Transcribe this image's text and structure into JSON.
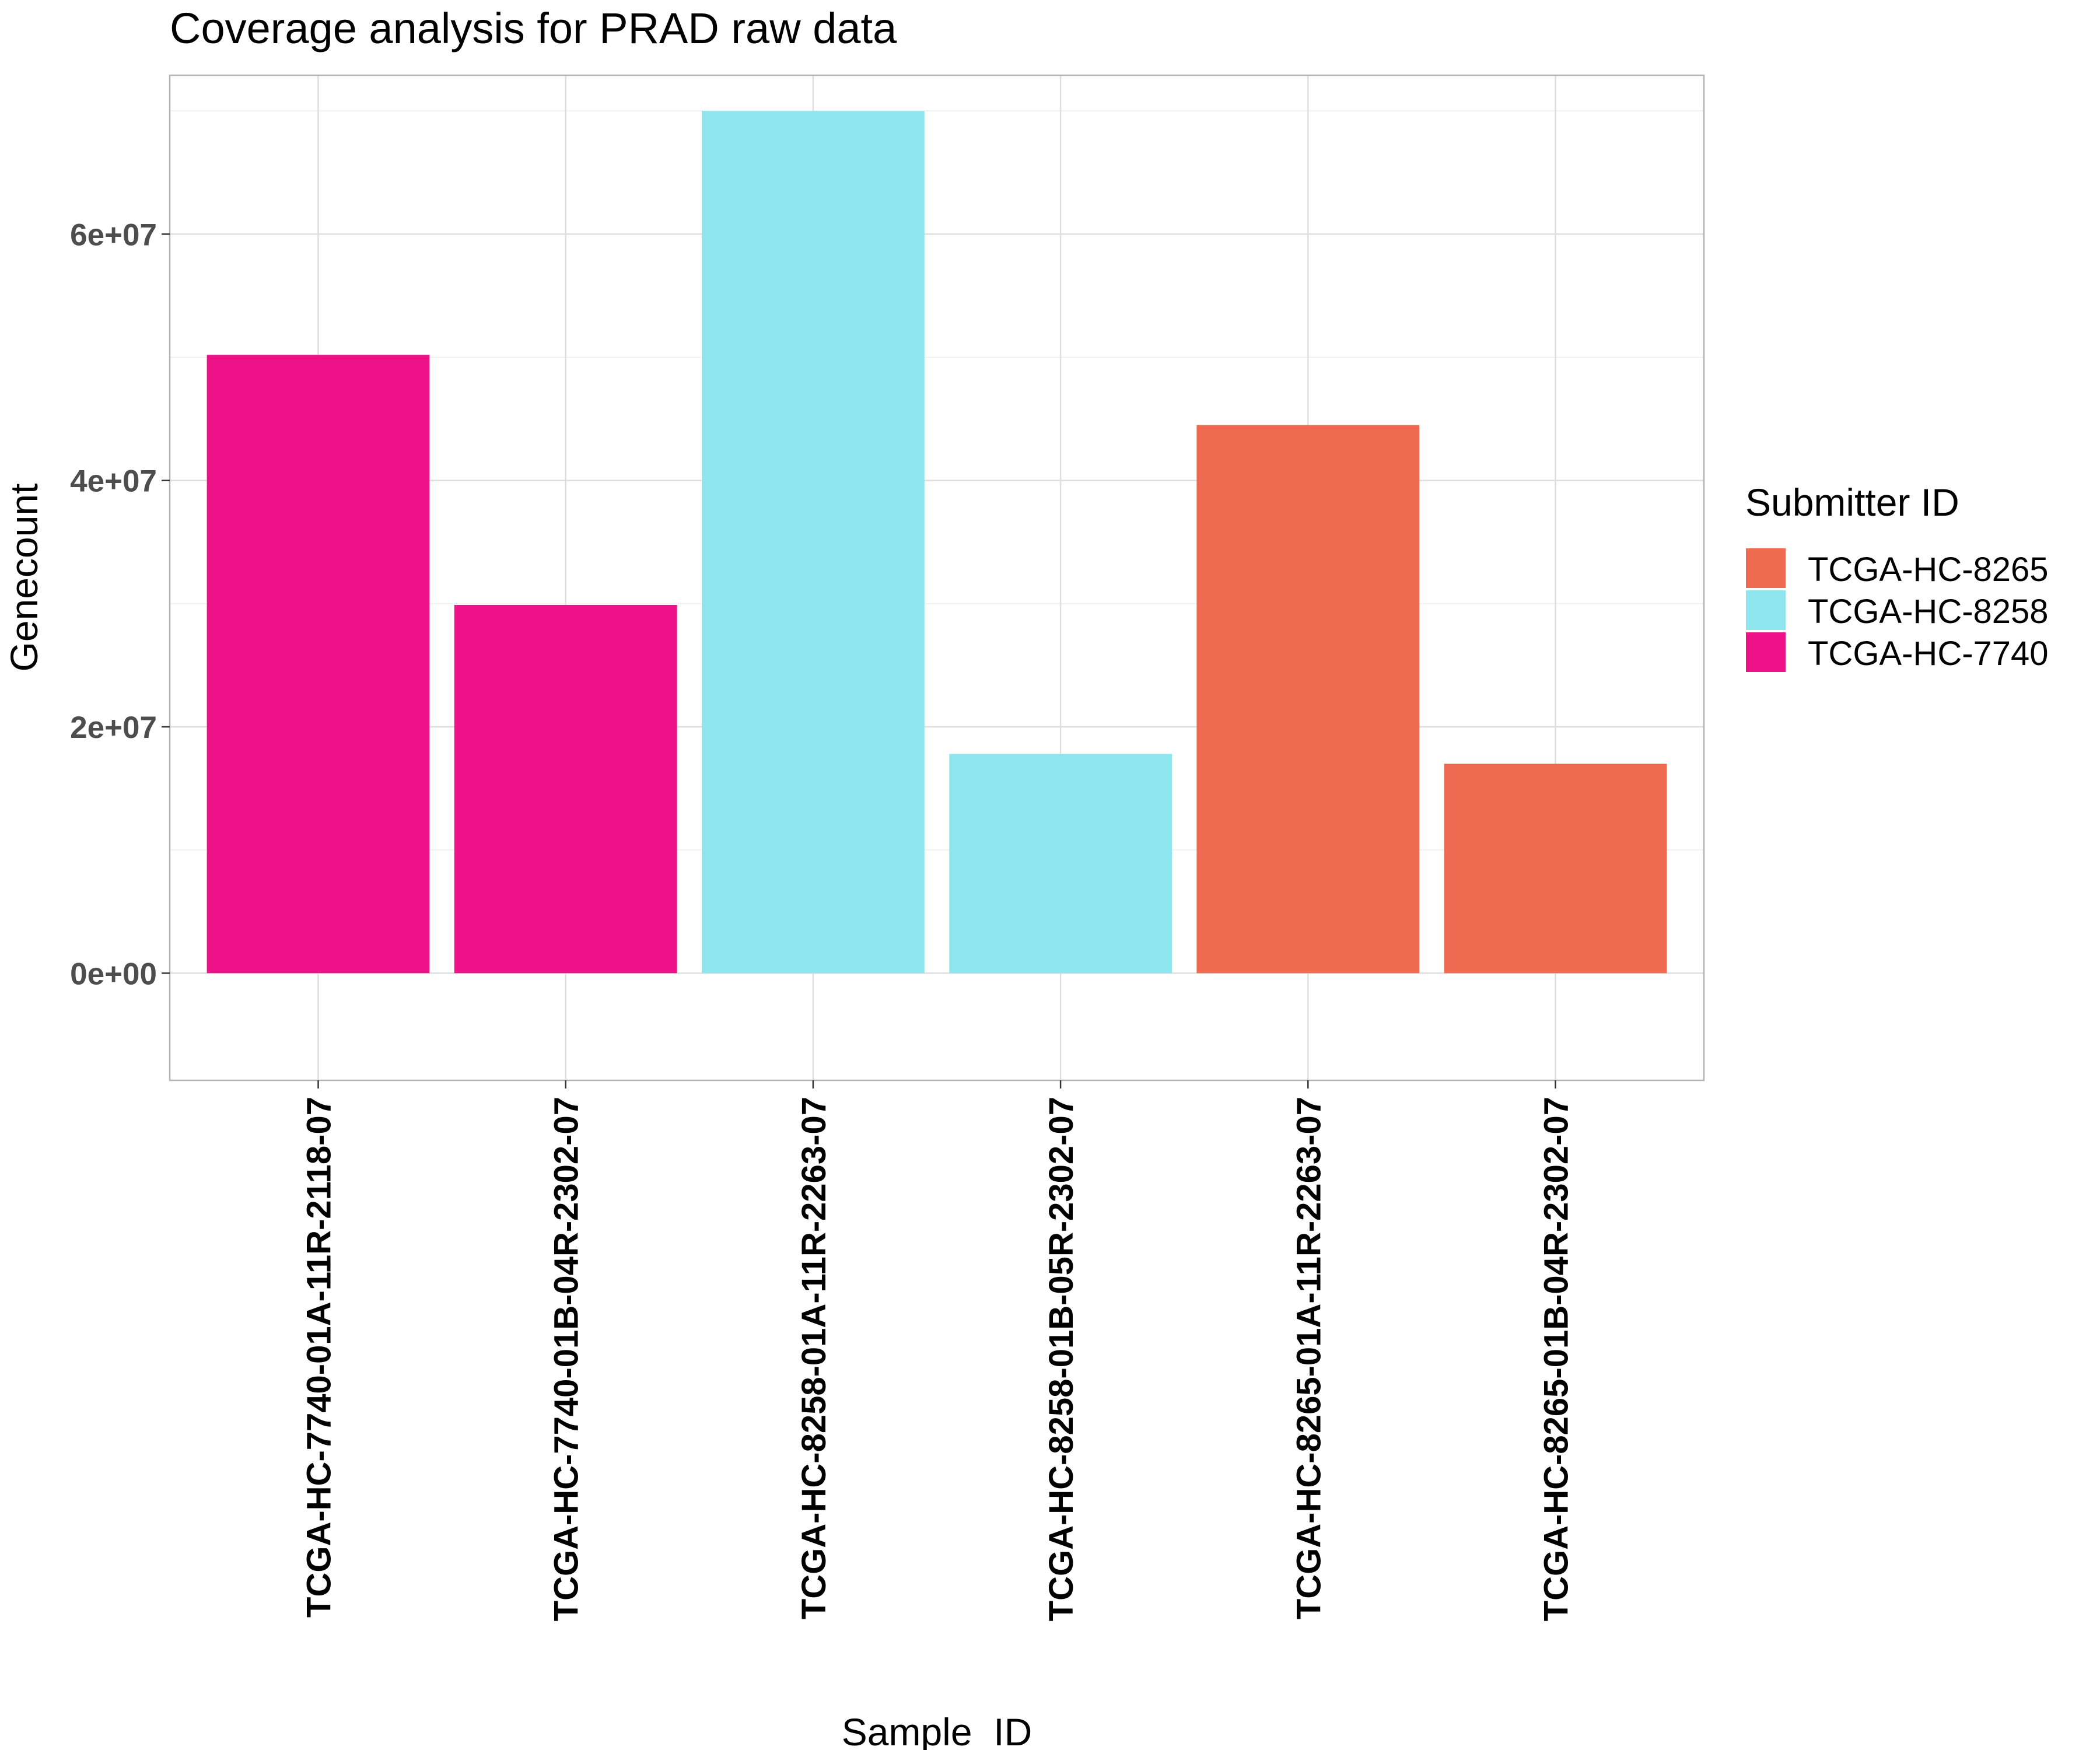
{
  "chart_data": {
    "type": "bar",
    "title": "Coverage analysis for PRAD raw data",
    "xlabel": "Sample_ID",
    "ylabel": "Genecount",
    "ylim": [
      -8700000,
      72900000
    ],
    "yticks": [
      0,
      20000000,
      40000000,
      60000000
    ],
    "ytick_labels": [
      "0e+00",
      "2e+07",
      "4e+07",
      "6e+07"
    ],
    "grid": true,
    "legend_position": "right",
    "legend_title": "Submitter ID",
    "legend": [
      {
        "name": "TCGA-HC-8265",
        "color": "#EE6A50"
      },
      {
        "name": "TCGA-HC-8258",
        "color": "#8EE5EE"
      },
      {
        "name": "TCGA-HC-7740",
        "color": "#EE1289"
      }
    ],
    "categories": [
      "TCGA-HC-7740-01A-11R-2118-07",
      "TCGA-HC-7740-01B-04R-2302-07",
      "TCGA-HC-8258-01A-11R-2263-07",
      "TCGA-HC-8258-01B-05R-2302-07",
      "TCGA-HC-8265-01A-11R-2263-07",
      "TCGA-HC-8265-01B-04R-2302-07"
    ],
    "values": [
      50200000,
      29900000,
      70000000,
      17800000,
      44500000,
      17000000
    ],
    "groups": [
      "TCGA-HC-7740",
      "TCGA-HC-7740",
      "TCGA-HC-8258",
      "TCGA-HC-8258",
      "TCGA-HC-8265",
      "TCGA-HC-8265"
    ]
  }
}
